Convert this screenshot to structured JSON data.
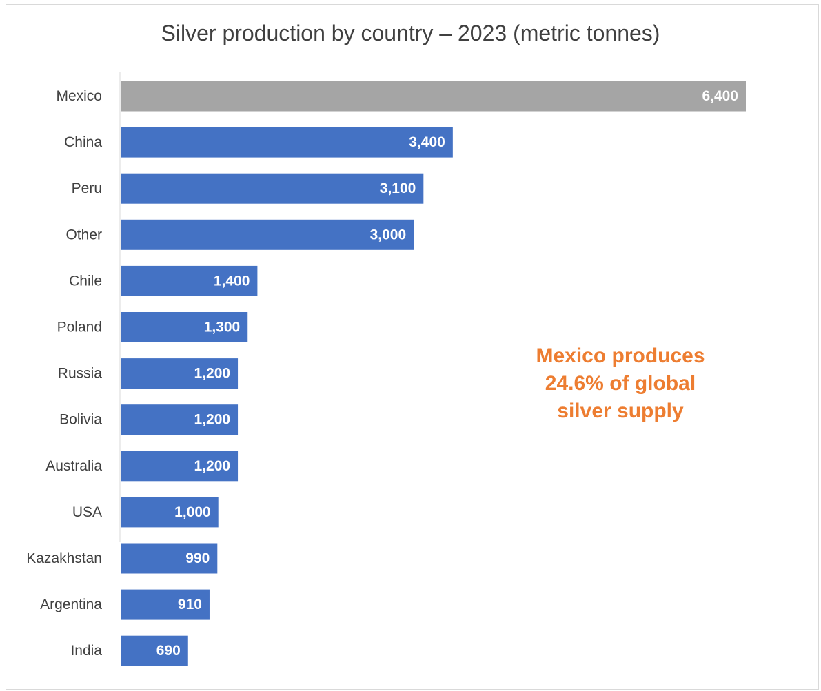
{
  "chart_data": {
    "type": "bar",
    "orientation": "horizontal",
    "title": "Silver production by country – 2023 (metric tonnes)",
    "categories": [
      "Mexico",
      "China",
      "Peru",
      "Other",
      "Chile",
      "Poland",
      "Russia",
      "Bolivia",
      "Australia",
      "USA",
      "Kazakhstan",
      "Argentina",
      "India"
    ],
    "values": [
      6400,
      3400,
      3100,
      3000,
      1400,
      1300,
      1200,
      1200,
      1200,
      1000,
      990,
      910,
      690
    ],
    "data_labels": [
      "6,400",
      "3,400",
      "3,100",
      "3,000",
      "1,400",
      "1,300",
      "1,200",
      "1,200",
      "1,200",
      "1,000",
      "990",
      "910",
      "690"
    ],
    "xlim": [
      0,
      6400
    ],
    "grid": false,
    "colors": {
      "highlight": "#A5A5A5",
      "default": "#4472C4",
      "annotation": "#ED7D31"
    },
    "highlight_category": "Mexico",
    "annotation": [
      "Mexico produces",
      "24.6% of global",
      "silver supply"
    ]
  }
}
